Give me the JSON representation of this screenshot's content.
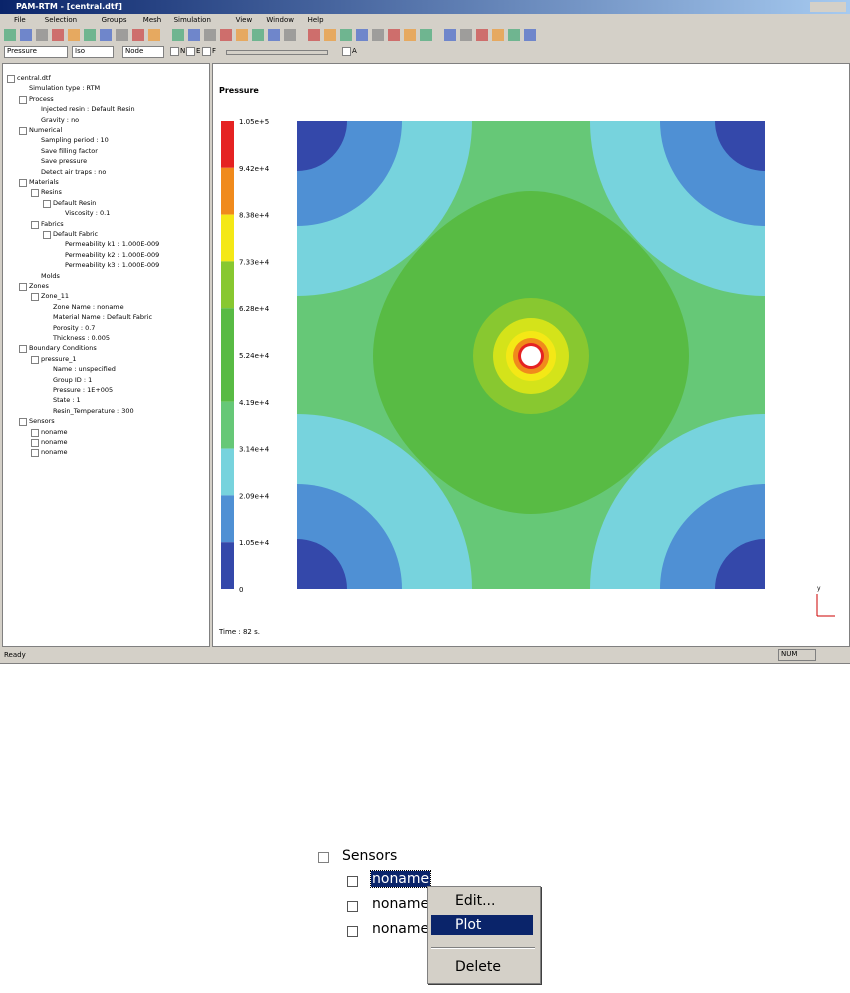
{
  "window": {
    "title": "PAM-RTM - [central.dtf]"
  },
  "menu": [
    "File",
    "Selection",
    "Groups",
    "Mesh",
    "Simulation",
    "View",
    "Window",
    "Help"
  ],
  "toolbar": {
    "selects": [
      "Pressure",
      "Iso",
      "Node"
    ],
    "checks": [
      "N",
      "E",
      "F",
      "A"
    ]
  },
  "tree": [
    {
      "label": "central.dtf",
      "level": 0,
      "expand": "open"
    },
    {
      "label": "Simulation type : RTM",
      "level": 1
    },
    {
      "label": "Process",
      "level": 1,
      "expand": "open"
    },
    {
      "label": "Injected resin : Default Resin",
      "level": 2
    },
    {
      "label": "Gravity : no",
      "level": 2
    },
    {
      "label": "Numerical",
      "level": 1,
      "expand": "open"
    },
    {
      "label": "Sampling period : 10",
      "level": 2
    },
    {
      "label": "Save filling factor",
      "level": 2
    },
    {
      "label": "Save pressure",
      "level": 2
    },
    {
      "label": "Detect air traps : no",
      "level": 2
    },
    {
      "label": "Materials",
      "level": 1,
      "expand": "open"
    },
    {
      "label": "Resins",
      "level": 2,
      "expand": "open"
    },
    {
      "label": "Default Resin",
      "level": 3,
      "expand": "open"
    },
    {
      "label": "Viscosity : 0.1",
      "level": 4
    },
    {
      "label": "Fabrics",
      "level": 2,
      "expand": "open"
    },
    {
      "label": "Default Fabric",
      "level": 3,
      "expand": "open"
    },
    {
      "label": "Permeability k1 : 1.000E-009",
      "level": 4
    },
    {
      "label": "Permeability k2 : 1.000E-009",
      "level": 4
    },
    {
      "label": "Permeability k3 : 1.000E-009",
      "level": 4
    },
    {
      "label": "Molds",
      "level": 2
    },
    {
      "label": "Zones",
      "level": 1,
      "expand": "open"
    },
    {
      "label": "Zone_11",
      "level": 2,
      "expand": "open"
    },
    {
      "label": "Zone Name : noname",
      "level": 3
    },
    {
      "label": "Material Name : Default Fabric",
      "level": 3
    },
    {
      "label": "Porosity : 0.7",
      "level": 3
    },
    {
      "label": "Thickness : 0.005",
      "level": 3
    },
    {
      "label": "Boundary Conditions",
      "level": 1,
      "expand": "open"
    },
    {
      "label": "pressure_1",
      "level": 2,
      "expand": "open"
    },
    {
      "label": "Name : unspecified",
      "level": 3
    },
    {
      "label": "Group ID : 1",
      "level": 3
    },
    {
      "label": "Pressure : 1E+005",
      "level": 3
    },
    {
      "label": "State : 1",
      "level": 3
    },
    {
      "label": "Resin_Temperature : 300",
      "level": 3
    },
    {
      "label": "Sensors",
      "level": 1,
      "expand": "open"
    },
    {
      "label": "noname",
      "level": 2,
      "expand": "closed"
    },
    {
      "label": "noname",
      "level": 2,
      "expand": "closed"
    },
    {
      "label": "noname",
      "level": 2,
      "expand": "closed"
    }
  ],
  "plot": {
    "title": "Pressure",
    "legend": [
      "1.05e+5",
      "9.42e+4",
      "8.38e+4",
      "7.33e+4",
      "6.28e+4",
      "5.24e+4",
      "4.19e+4",
      "3.14e+4",
      "2.09e+4",
      "1.05e+4",
      "0"
    ],
    "time": "Time : 82 s.",
    "axis": "y"
  },
  "status": {
    "text": "Ready",
    "indicator": "NUM"
  },
  "zoom": {
    "parent": "Sensors",
    "items": [
      "noname",
      "noname",
      "noname"
    ],
    "context_menu": [
      "Edit...",
      "Plot",
      "Delete"
    ]
  }
}
